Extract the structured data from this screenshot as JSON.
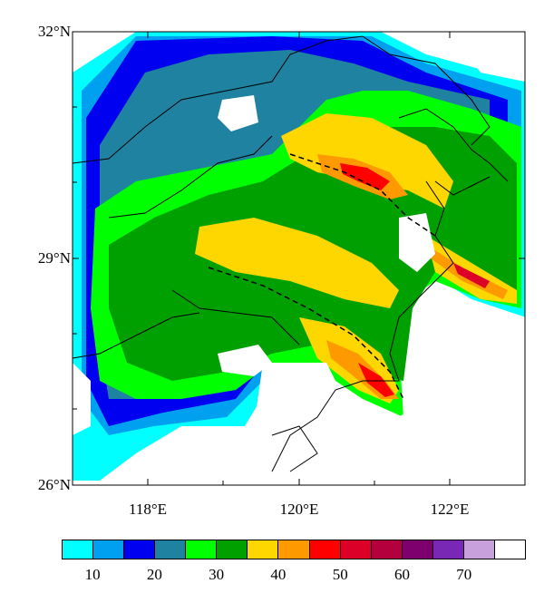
{
  "map": {
    "lat_labels": [
      "32°N",
      "29°N",
      "26°N"
    ],
    "lon_labels": [
      "118°E",
      "120°E",
      "122°E"
    ],
    "lat_range": [
      26,
      32
    ],
    "lon_range": [
      117,
      123
    ],
    "bounds_marked": "dashed lines"
  },
  "colorbar": {
    "colors": [
      "#00ffff",
      "#00a0f0",
      "#0000f0",
      "#1e82a0",
      "#00ff00",
      "#00a000",
      "#ffd700",
      "#ff9900",
      "#ff0000",
      "#dc0028",
      "#b4003c",
      "#7d006e",
      "#7828b4",
      "#c8a0dc",
      "#ffffff"
    ],
    "tick_labels": [
      "10",
      "20",
      "30",
      "40",
      "50",
      "60",
      "70"
    ]
  }
}
